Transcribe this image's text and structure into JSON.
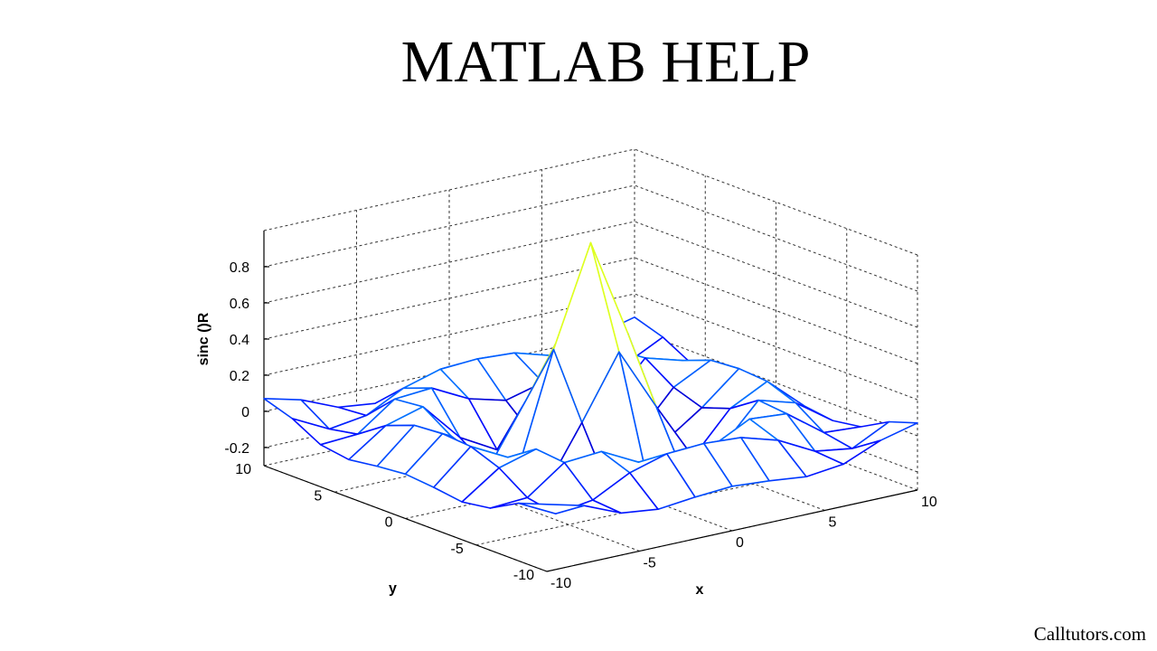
{
  "title": "MATLAB HELP",
  "footer": "Calltutors.com",
  "chart_data": {
    "type": "mesh",
    "xlabel": "x",
    "ylabel": "y",
    "zlabel": "sinc ()R",
    "x": [
      -10,
      -8,
      -6,
      -4,
      -2,
      0,
      2,
      4,
      6,
      8,
      10
    ],
    "y": [
      -10,
      -8,
      -6,
      -4,
      -2,
      0,
      2,
      4,
      6,
      8,
      10
    ],
    "z": [
      [
        0.071,
        0.019,
        -0.067,
        -0.091,
        -0.069,
        -0.054,
        -0.069,
        -0.091,
        -0.067,
        0.019,
        0.071
      ],
      [
        0.019,
        -0.084,
        -0.054,
        0.052,
        0.112,
        0.124,
        0.112,
        0.052,
        -0.054,
        -0.084,
        0.019
      ],
      [
        -0.067,
        -0.054,
        0.095,
        0.111,
        0.007,
        -0.047,
        0.007,
        0.111,
        0.095,
        -0.054,
        -0.067
      ],
      [
        -0.091,
        0.052,
        0.111,
        -0.104,
        -0.217,
        -0.189,
        -0.217,
        -0.104,
        0.111,
        0.052,
        -0.091
      ],
      [
        -0.069,
        0.112,
        0.007,
        -0.217,
        0.109,
        0.455,
        0.109,
        -0.217,
        0.007,
        0.112,
        -0.069
      ],
      [
        -0.054,
        0.124,
        -0.047,
        -0.189,
        0.455,
        1,
        0.455,
        -0.189,
        -0.047,
        0.124,
        -0.054
      ],
      [
        -0.069,
        0.112,
        0.007,
        -0.217,
        0.109,
        0.455,
        0.109,
        -0.217,
        0.007,
        0.112,
        -0.069
      ],
      [
        -0.091,
        0.052,
        0.111,
        -0.104,
        -0.217,
        -0.189,
        -0.217,
        -0.104,
        0.111,
        0.052,
        -0.091
      ],
      [
        -0.067,
        -0.054,
        0.095,
        0.111,
        0.007,
        -0.047,
        0.007,
        0.111,
        0.095,
        -0.054,
        -0.067
      ],
      [
        0.019,
        -0.084,
        -0.054,
        0.052,
        0.112,
        0.124,
        0.112,
        0.052,
        -0.054,
        -0.084,
        0.019
      ],
      [
        0.071,
        0.019,
        -0.067,
        -0.091,
        -0.069,
        -0.054,
        -0.069,
        -0.091,
        -0.067,
        0.019,
        0.071
      ]
    ],
    "xlim": [
      -10,
      10
    ],
    "ylim": [
      -10,
      10
    ],
    "zlim": [
      -0.3,
      1
    ],
    "xticks": [
      -10,
      -5,
      0,
      5,
      10
    ],
    "yticks": [
      -10,
      -5,
      0,
      5,
      10
    ],
    "zticks": [
      -0.2,
      0,
      0.2,
      0.4,
      0.6,
      0.8
    ],
    "grid": true,
    "colormap": "jet"
  }
}
